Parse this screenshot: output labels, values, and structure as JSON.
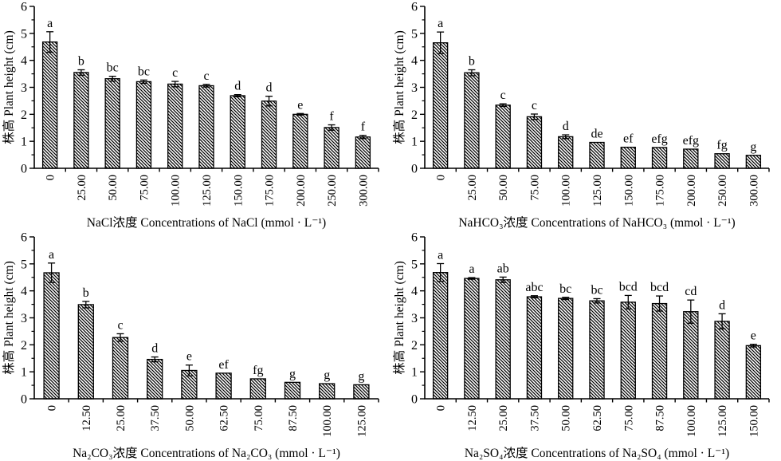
{
  "figure": {
    "ylabel": "株高 Plant height (cm)",
    "colors": {
      "stroke": "#000000",
      "bar_fill": "#ffffff",
      "background": "#ffffff"
    }
  },
  "chart_data": [
    {
      "id": "nacl",
      "type": "bar",
      "title": "NaCl浓度 Concentrations of NaCl (mmol · L⁻¹)",
      "xlabel": "NaCl浓度 Concentrations of NaCl (mmol · L⁻¹)",
      "ylabel": "株高 Plant height (cm)",
      "ylim": [
        0,
        6
      ],
      "ytick_step": 1,
      "yminor_step": 0.5,
      "grid": false,
      "legend": "none",
      "categories": [
        "0",
        "25.00",
        "50.00",
        "75.00",
        "100.00",
        "125.00",
        "150.00",
        "175.00",
        "200.00",
        "250.00",
        "300.00"
      ],
      "values": [
        4.68,
        3.55,
        3.32,
        3.21,
        3.12,
        3.06,
        2.69,
        2.49,
        2.0,
        1.51,
        1.16
      ],
      "errors": [
        0.38,
        0.1,
        0.09,
        0.06,
        0.1,
        0.05,
        0.04,
        0.18,
        0.03,
        0.1,
        0.06
      ],
      "letters": [
        "a",
        "b",
        "bc",
        "bc",
        "c",
        "c",
        "d",
        "d",
        "e",
        "f",
        "f"
      ]
    },
    {
      "id": "nahco3",
      "type": "bar",
      "title": "NaHCO₃浓度 Concentrations of NaHCO₃ (mmol · L⁻¹)",
      "xlabel": "NaHCO₃浓度 Concentrations of NaHCO₃ (mmol · L⁻¹)",
      "ylabel": "株高 Plant height (cm)",
      "ylim": [
        0,
        6
      ],
      "ytick_step": 1,
      "yminor_step": 0.5,
      "grid": false,
      "legend": "none",
      "categories": [
        "0",
        "25.00",
        "50.00",
        "75.00",
        "100.00",
        "125.00",
        "150.00",
        "175.00",
        "200.00",
        "250.00",
        "300.00"
      ],
      "values": [
        4.65,
        3.54,
        2.34,
        1.91,
        1.17,
        0.96,
        0.78,
        0.77,
        0.71,
        0.54,
        0.48
      ],
      "errors": [
        0.4,
        0.11,
        0.05,
        0.1,
        0.07,
        0,
        0,
        0,
        0,
        0,
        0
      ],
      "letters": [
        "a",
        "b",
        "c",
        "c",
        "d",
        "de",
        "ef",
        "efg",
        "efg",
        "fg",
        "g"
      ]
    },
    {
      "id": "na2co3",
      "type": "bar",
      "title": "Na₂CO₃浓度 Concentrations of Na₂CO₃ (mmol · L⁻¹)",
      "xlabel": "Na₂CO₃浓度 Concentrations of Na₂CO₃ (mmol · L⁻¹)",
      "ylabel": "株高 Plant height (cm)",
      "ylim": [
        0,
        6
      ],
      "ytick_step": 1,
      "yminor_step": 0.5,
      "grid": false,
      "legend": "none",
      "categories": [
        "0",
        "12.50",
        "25.00",
        "37.50",
        "50.00",
        "62.50",
        "75.00",
        "87.50",
        "100.00",
        "125.00"
      ],
      "values": [
        4.67,
        3.49,
        2.27,
        1.46,
        1.05,
        0.95,
        0.74,
        0.61,
        0.56,
        0.52
      ],
      "errors": [
        0.36,
        0.12,
        0.14,
        0.09,
        0.2,
        0,
        0,
        0,
        0,
        0
      ],
      "letters": [
        "a",
        "b",
        "c",
        "d",
        "e",
        "ef",
        "fg",
        "g",
        "g",
        "g"
      ]
    },
    {
      "id": "na2so4",
      "type": "bar",
      "title": "Na₂SO₄浓度 Concentrations of Na₂SO₄ (mmol · L⁻¹)",
      "xlabel": "Na₂SO₄浓度 Concentrations of Na₂SO₄ (mmol · L⁻¹)",
      "ylabel": "株高 Plant height (cm)",
      "ylim": [
        0,
        6
      ],
      "ytick_step": 1,
      "yminor_step": 0.5,
      "grid": false,
      "legend": "none",
      "categories": [
        "0",
        "12.50",
        "25.00",
        "37.50",
        "50.00",
        "62.50",
        "75.00",
        "87.50",
        "100.00",
        "125.00",
        "150.00"
      ],
      "values": [
        4.68,
        4.46,
        4.41,
        3.78,
        3.72,
        3.63,
        3.58,
        3.53,
        3.23,
        2.87,
        1.97
      ],
      "errors": [
        0.33,
        0.03,
        0.1,
        0.04,
        0.04,
        0.08,
        0.25,
        0.28,
        0.43,
        0.28,
        0.05
      ],
      "letters": [
        "a",
        "a",
        "ab",
        "abc",
        "bc",
        "bc",
        "bcd",
        "bcd",
        "cd",
        "d",
        "e"
      ]
    }
  ]
}
